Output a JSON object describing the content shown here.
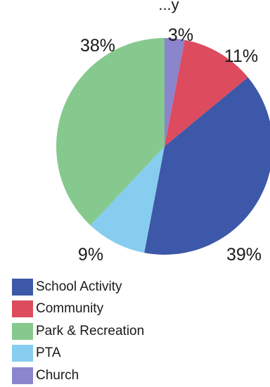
{
  "chart_data": {
    "type": "pie",
    "title": "...y",
    "categories": [
      "School Activity",
      "Community",
      "Park & Recreation",
      "PTA",
      "Church"
    ],
    "values": [
      39,
      11,
      38,
      9,
      3
    ],
    "value_labels": [
      "39%",
      "11%",
      "38%",
      "9%",
      "3%"
    ],
    "colors": [
      "#3d58a8",
      "#dc4c5e",
      "#86c98e",
      "#86cdf0",
      "#8b85cd"
    ],
    "legend_position": "bottom-left",
    "slice_order_clockwise_from_top": [
      "Church",
      "Community",
      "School Activity",
      "PTA",
      "Park & Recreation"
    ]
  }
}
